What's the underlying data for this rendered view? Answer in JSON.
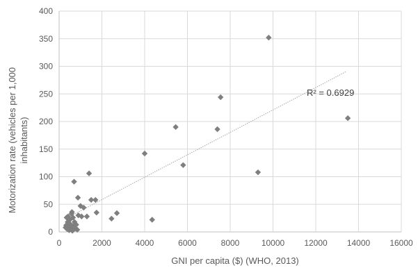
{
  "chart_data": {
    "type": "scatter",
    "title": "",
    "xlabel": "GNI per capita ($) (WHO, 2013)",
    "ylabel_lines": [
      "Motorization rate (vehicles per 1,000",
      "inhabitants)"
    ],
    "xlim": [
      0,
      16000
    ],
    "ylim": [
      0,
      400
    ],
    "x_ticks": [
      0,
      2000,
      4000,
      6000,
      8000,
      10000,
      12000,
      14000,
      16000
    ],
    "y_ticks": [
      0,
      50,
      100,
      150,
      200,
      250,
      300,
      350,
      400
    ],
    "grid": true,
    "legend": "none",
    "marker": "diamond",
    "marker_color": "#7f7f7f",
    "trendline": {
      "type": "linear",
      "color": "#a6a6a6",
      "x": [
        400,
        13400
      ],
      "y": [
        26,
        290
      ],
      "label": "R² = 0.6929"
    },
    "points": [
      {
        "x": 300,
        "y": 8
      },
      {
        "x": 330,
        "y": 12
      },
      {
        "x": 350,
        "y": 26
      },
      {
        "x": 380,
        "y": 5
      },
      {
        "x": 400,
        "y": 18
      },
      {
        "x": 420,
        "y": 28
      },
      {
        "x": 450,
        "y": 10
      },
      {
        "x": 470,
        "y": 3
      },
      {
        "x": 500,
        "y": 22
      },
      {
        "x": 520,
        "y": 14
      },
      {
        "x": 550,
        "y": 8
      },
      {
        "x": 580,
        "y": 33
      },
      {
        "x": 600,
        "y": 36
      },
      {
        "x": 620,
        "y": 2
      },
      {
        "x": 650,
        "y": 26
      },
      {
        "x": 680,
        "y": 12
      },
      {
        "x": 700,
        "y": 91
      },
      {
        "x": 720,
        "y": 18
      },
      {
        "x": 750,
        "y": 6
      },
      {
        "x": 800,
        "y": 13
      },
      {
        "x": 850,
        "y": 4
      },
      {
        "x": 880,
        "y": 62
      },
      {
        "x": 900,
        "y": 30
      },
      {
        "x": 1000,
        "y": 47
      },
      {
        "x": 1050,
        "y": 28
      },
      {
        "x": 1150,
        "y": 44
      },
      {
        "x": 1300,
        "y": 28
      },
      {
        "x": 1400,
        "y": 106
      },
      {
        "x": 1500,
        "y": 58
      },
      {
        "x": 1700,
        "y": 58
      },
      {
        "x": 1750,
        "y": 35
      },
      {
        "x": 2450,
        "y": 24
      },
      {
        "x": 2700,
        "y": 34
      },
      {
        "x": 4000,
        "y": 142
      },
      {
        "x": 4350,
        "y": 22
      },
      {
        "x": 5450,
        "y": 190
      },
      {
        "x": 5800,
        "y": 121
      },
      {
        "x": 7400,
        "y": 186
      },
      {
        "x": 7550,
        "y": 244
      },
      {
        "x": 9300,
        "y": 108
      },
      {
        "x": 9800,
        "y": 352
      },
      {
        "x": 13500,
        "y": 206
      }
    ]
  }
}
